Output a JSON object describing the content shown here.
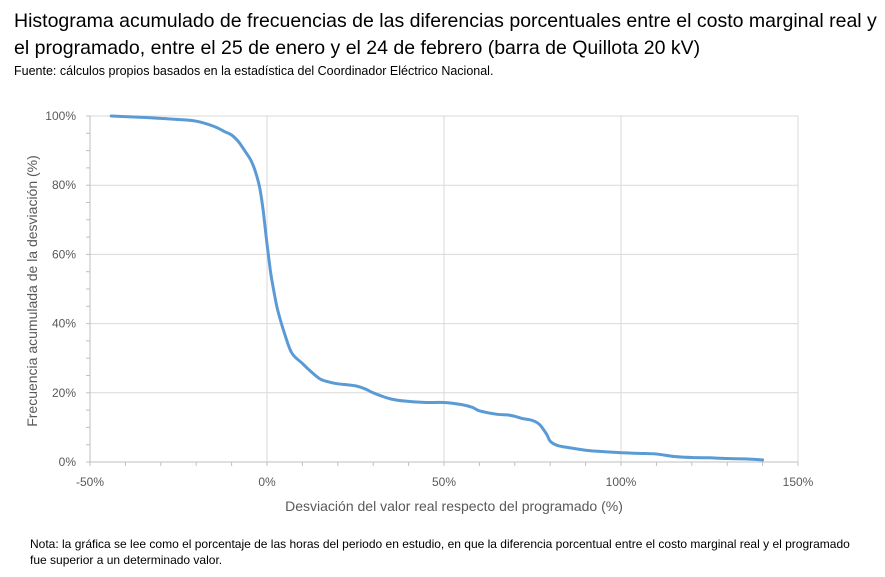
{
  "title": "Histograma acumulado de frecuencias de las diferencias porcentuales entre el costo marginal real y el programado, entre el 25 de enero y el 24 de febrero (barra de Quillota 20 kV)",
  "source": "Fuente: cálculos propios basados en la estadística del Coordinador Eléctrico Nacional.",
  "note": "Nota: la gráfica se lee como el porcentaje de las horas del periodo en estudio, en que la diferencia porcentual entre el costo marginal real y el programado fue superior a un determinado valor.",
  "chart_data": {
    "type": "line",
    "title": "",
    "xlabel": "Desviación del valor real respecto del programado (%)",
    "ylabel": "Frecuencia acumulada de la desviación (%)",
    "xlim": [
      -50,
      150
    ],
    "ylim": [
      0,
      100
    ],
    "x_ticks": [
      -50,
      0,
      50,
      100,
      150
    ],
    "x_tick_labels": [
      "-50%",
      "0%",
      "50%",
      "100%",
      "150%"
    ],
    "y_ticks": [
      0,
      20,
      40,
      60,
      80,
      100
    ],
    "y_tick_labels": [
      "0%",
      "20%",
      "40%",
      "60%",
      "80%",
      "100%"
    ],
    "grid": true,
    "series_color": "#5b9bd5",
    "series": [
      {
        "x": [
          -44,
          -35,
          -30,
          -25,
          -20,
          -15,
          -12,
          -10,
          -8,
          -6,
          -5,
          -4,
          -3,
          -2,
          -1,
          0,
          1,
          2,
          3,
          5,
          7,
          10,
          12,
          15,
          18,
          20,
          25,
          28,
          30,
          35,
          40,
          45,
          50,
          55,
          58,
          60,
          65,
          68,
          70,
          72,
          75,
          77,
          79,
          80,
          82,
          85,
          90,
          95,
          100,
          105,
          110,
          115,
          120,
          125,
          130,
          135,
          140
        ],
        "y": [
          100,
          99.6,
          99.3,
          99,
          98.5,
          97,
          95.5,
          94.5,
          92.5,
          89.5,
          88,
          86,
          83,
          79,
          72,
          63,
          55,
          49,
          44,
          37,
          31.5,
          28.5,
          26.5,
          24,
          23,
          22.6,
          22,
          21,
          20,
          18.2,
          17.5,
          17.2,
          17.2,
          16.6,
          15.8,
          14.8,
          13.8,
          13.6,
          13.2,
          12.6,
          12,
          10.8,
          8,
          6,
          4.8,
          4.2,
          3.4,
          3.0,
          2.7,
          2.5,
          2.3,
          1.6,
          1.3,
          1.2,
          1.0,
          0.9,
          0.6
        ]
      }
    ]
  }
}
